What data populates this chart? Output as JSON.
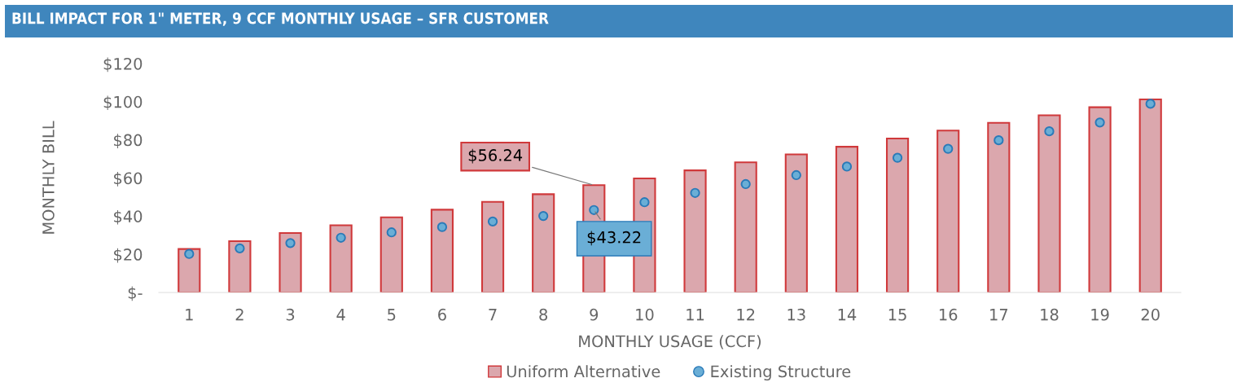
{
  "chart_data": {
    "type": "bar",
    "title": "BILL IMPACT FOR 1\" METER, 9 CCF MONTHLY USAGE – SFR CUSTOMER",
    "xlabel": "MONTHLY USAGE (CCF)",
    "ylabel": "MONTHLY BILL",
    "categories": [
      "1",
      "2",
      "3",
      "4",
      "5",
      "6",
      "7",
      "8",
      "9",
      "10",
      "11",
      "12",
      "13",
      "14",
      "15",
      "16",
      "17",
      "18",
      "19",
      "20"
    ],
    "series": [
      {
        "name": "Uniform Alternative",
        "color": "#dba7ad",
        "values": [
          22.8,
          26.9,
          31.2,
          35.2,
          39.4,
          43.4,
          47.5,
          51.5,
          56.24,
          59.8,
          64.0,
          68.2,
          72.4,
          76.4,
          80.7,
          84.9,
          88.9,
          92.9,
          97.1,
          101.2
        ],
        "value_labels": [
          null,
          null,
          null,
          null,
          null,
          null,
          null,
          null,
          "$56.24",
          null,
          null,
          null,
          null,
          null,
          null,
          null,
          null,
          null,
          null,
          null
        ]
      },
      {
        "name": "Existing Structure",
        "type": "scatter",
        "color": "#6aaed6",
        "values": [
          20.2,
          23.1,
          25.9,
          28.7,
          31.5,
          34.3,
          37.2,
          40.1,
          43.22,
          47.3,
          52.2,
          56.8,
          61.5,
          66.0,
          70.6,
          75.3,
          79.8,
          84.5,
          89.1,
          98.9
        ],
        "value_labels": [
          null,
          null,
          null,
          null,
          null,
          null,
          null,
          null,
          "$43.22",
          null,
          null,
          null,
          null,
          null,
          null,
          null,
          null,
          null,
          null,
          null
        ]
      }
    ],
    "ylim": [
      0,
      120
    ],
    "yticks": [
      {
        "value": 0,
        "label": "$-"
      },
      {
        "value": 20,
        "label": "$20"
      },
      {
        "value": 40,
        "label": "$40"
      },
      {
        "value": 60,
        "label": "$60"
      },
      {
        "value": 80,
        "label": "$80"
      },
      {
        "value": 100,
        "label": "$100"
      },
      {
        "value": 120,
        "label": "$120"
      }
    ],
    "marker": "circle",
    "grid": false,
    "legend": "bottom"
  }
}
